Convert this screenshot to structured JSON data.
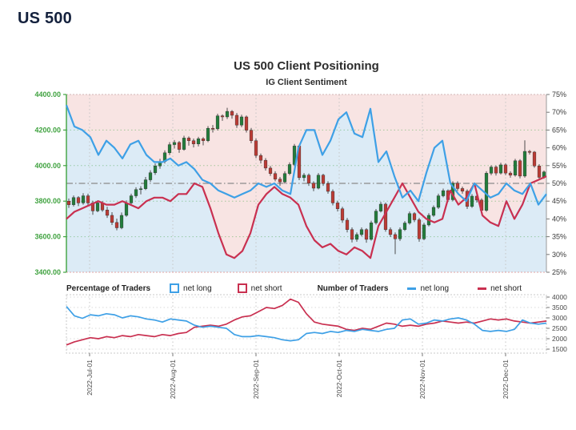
{
  "page": {
    "title": "US 500"
  },
  "chart": {
    "title": "US 500 Client Positioning",
    "subtitle": "IG Client Sentiment",
    "legend": {
      "pct_group_label": "Percentage of Traders",
      "pct_net_long": "net long",
      "pct_net_short": "net short",
      "num_group_label": "Number of Traders",
      "num_net_long": "net long",
      "num_net_short": "net short"
    },
    "colors": {
      "net_long_line": "#3ea0e6",
      "net_short_line": "#c93050",
      "bg_above": "#f8e4e3",
      "bg_below": "#dcebf6",
      "candle_up": "#227d3b",
      "candle_down": "#bc3b34",
      "price_axis": "#3fa23f",
      "pct_axis_text": "#3a3a3a",
      "midline": "#8a8a8a"
    }
  },
  "chart_data": {
    "type": "candlestick+line",
    "title": "US 500 Client Positioning",
    "subtitle": "IG Client Sentiment",
    "price_axis_ticks": [
      "4400.00",
      "4200.00",
      "4000.00",
      "3800.00",
      "3600.00",
      "3400.00"
    ],
    "price_ylim": [
      3400,
      4400
    ],
    "pct_axis_ticks": [
      "75%",
      "70%",
      "65%",
      "60%",
      "55%",
      "50%",
      "45%",
      "40%",
      "35%",
      "30%",
      "25%"
    ],
    "pct_ylim": [
      25,
      75
    ],
    "x_tick_labels": [
      "2022-Jul-01",
      "2022-Aug-01",
      "2022-Sep-01",
      "2022-Oct-01",
      "2022-Nov-01",
      "2022-Dec-01"
    ],
    "midline_pct": 50,
    "candles_ohlc": [
      [
        3800,
        3815,
        3762,
        3780
      ],
      [
        3780,
        3832,
        3770,
        3820
      ],
      [
        3820,
        3828,
        3772,
        3790
      ],
      [
        3790,
        3845,
        3780,
        3830
      ],
      [
        3830,
        3842,
        3776,
        3790
      ],
      [
        3790,
        3802,
        3723,
        3745
      ],
      [
        3745,
        3805,
        3738,
        3790
      ],
      [
        3790,
        3800,
        3740,
        3750
      ],
      [
        3750,
        3768,
        3706,
        3720
      ],
      [
        3720,
        3738,
        3666,
        3680
      ],
      [
        3680,
        3702,
        3636,
        3650
      ],
      [
        3650,
        3736,
        3642,
        3720
      ],
      [
        3720,
        3804,
        3712,
        3790
      ],
      [
        3790,
        3842,
        3778,
        3830
      ],
      [
        3830,
        3878,
        3818,
        3865
      ],
      [
        3865,
        3884,
        3838,
        3870
      ],
      [
        3870,
        3936,
        3862,
        3920
      ],
      [
        3920,
        3974,
        3908,
        3960
      ],
      [
        3960,
        4012,
        3948,
        3998
      ],
      [
        3998,
        4038,
        3982,
        4023
      ],
      [
        4023,
        4086,
        4012,
        4072
      ],
      [
        4072,
        4132,
        4060,
        4118
      ],
      [
        4118,
        4144,
        4096,
        4130
      ],
      [
        4130,
        4138,
        4072,
        4091
      ],
      [
        4091,
        4168,
        4084,
        4155
      ],
      [
        4155,
        4164,
        4112,
        4140
      ],
      [
        4140,
        4152,
        4102,
        4122
      ],
      [
        4122,
        4162,
        4108,
        4151
      ],
      [
        4151,
        4160,
        4114,
        4140
      ],
      [
        4140,
        4222,
        4132,
        4210
      ],
      [
        4210,
        4228,
        4186,
        4207
      ],
      [
        4207,
        4292,
        4198,
        4280
      ],
      [
        4280,
        4288,
        4252,
        4274
      ],
      [
        4274,
        4325,
        4262,
        4305
      ],
      [
        4305,
        4312,
        4264,
        4283
      ],
      [
        4283,
        4296,
        4212,
        4228
      ],
      [
        4228,
        4286,
        4216,
        4274
      ],
      [
        4274,
        4282,
        4186,
        4199
      ],
      [
        4199,
        4212,
        4126,
        4140
      ],
      [
        4140,
        4152,
        4042,
        4057
      ],
      [
        4057,
        4068,
        4012,
        4030
      ],
      [
        4030,
        4042,
        3972,
        3986
      ],
      [
        3986,
        3998,
        3942,
        3955
      ],
      [
        3955,
        3968,
        3912,
        3924
      ],
      [
        3924,
        3936,
        3886,
        3908
      ],
      [
        3908,
        3968,
        3898,
        3955
      ],
      [
        3955,
        4018,
        3946,
        4006
      ],
      [
        4006,
        4122,
        3998,
        4110
      ],
      [
        4110,
        4118,
        3918,
        3932
      ],
      [
        3932,
        3958,
        3912,
        3946
      ],
      [
        3946,
        3956,
        3886,
        3901
      ],
      [
        3901,
        3912,
        3856,
        3873
      ],
      [
        3873,
        3958,
        3866,
        3946
      ],
      [
        3946,
        3954,
        3886,
        3899
      ],
      [
        3899,
        3912,
        3842,
        3855
      ],
      [
        3855,
        3866,
        3776,
        3790
      ],
      [
        3790,
        3802,
        3742,
        3757
      ],
      [
        3757,
        3768,
        3678,
        3693
      ],
      [
        3693,
        3706,
        3624,
        3640
      ],
      [
        3640,
        3652,
        3568,
        3585
      ],
      [
        3585,
        3624,
        3572,
        3612
      ],
      [
        3612,
        3652,
        3602,
        3640
      ],
      [
        3640,
        3648,
        3566,
        3585
      ],
      [
        3585,
        3690,
        3578,
        3678
      ],
      [
        3678,
        3756,
        3668,
        3744
      ],
      [
        3744,
        3796,
        3736,
        3783
      ],
      [
        3783,
        3792,
        3628,
        3640
      ],
      [
        3640,
        3652,
        3598,
        3612
      ],
      [
        3612,
        3624,
        3502,
        3588
      ],
      [
        3588,
        3652,
        3576,
        3640
      ],
      [
        3640,
        3688,
        3632,
        3677
      ],
      [
        3677,
        3742,
        3668,
        3730
      ],
      [
        3730,
        3738,
        3682,
        3695
      ],
      [
        3695,
        3706,
        3572,
        3588
      ],
      [
        3588,
        3678,
        3580,
        3666
      ],
      [
        3666,
        3732,
        3658,
        3720
      ],
      [
        3720,
        3776,
        3712,
        3765
      ],
      [
        3765,
        3842,
        3756,
        3830
      ],
      [
        3830,
        3871,
        3822,
        3859
      ],
      [
        3859,
        3866,
        3796,
        3808
      ],
      [
        3808,
        3912,
        3800,
        3901
      ],
      [
        3901,
        3912,
        3858,
        3871
      ],
      [
        3871,
        3882,
        3842,
        3856
      ],
      [
        3856,
        3866,
        3756,
        3770
      ],
      [
        3770,
        3840,
        3762,
        3828
      ],
      [
        3828,
        3836,
        3792,
        3806
      ],
      [
        3806,
        3816,
        3736,
        3748
      ],
      [
        3748,
        3968,
        3740,
        3957
      ],
      [
        3957,
        4002,
        3946,
        3992
      ],
      [
        3992,
        4001,
        3944,
        3958
      ],
      [
        3958,
        4016,
        3950,
        4004
      ],
      [
        4004,
        4012,
        3946,
        3958
      ],
      [
        3958,
        3968,
        3932,
        3946
      ],
      [
        3946,
        4038,
        3938,
        4027
      ],
      [
        4027,
        4036,
        3928,
        3941
      ],
      [
        3941,
        4142,
        3932,
        4080
      ],
      [
        4080,
        4088,
        4062,
        4076
      ],
      [
        4076,
        4082,
        3988,
        3998
      ],
      [
        3998,
        4008,
        3922,
        3934
      ],
      [
        3934,
        3972,
        3926,
        3964
      ]
    ],
    "net_long_pct": [
      72,
      66,
      65,
      63,
      58,
      62,
      60,
      57,
      61,
      62,
      58,
      56,
      56,
      57,
      55,
      56,
      54,
      51,
      50,
      48,
      47,
      46,
      47,
      48,
      50,
      49,
      50,
      48,
      47,
      60,
      65,
      65,
      58,
      62,
      68,
      70,
      64,
      63,
      71,
      56,
      59,
      52,
      46,
      48,
      45,
      53,
      60,
      62,
      50,
      47,
      45,
      50,
      48,
      46,
      47,
      50,
      48,
      47,
      50,
      44,
      47
    ],
    "net_short_pct": [
      40,
      42,
      43,
      44,
      45,
      44,
      44,
      45,
      44,
      43,
      45,
      46,
      46,
      45,
      47,
      47,
      50,
      49,
      43,
      36,
      30,
      29,
      31,
      36,
      44,
      47,
      49,
      47,
      46,
      44,
      38,
      34,
      32,
      33,
      31,
      30,
      32,
      31,
      29,
      38,
      42,
      46,
      50,
      46,
      42,
      40,
      39,
      40,
      48,
      44,
      46,
      50,
      41,
      39,
      38,
      45,
      40,
      44,
      50,
      51,
      52
    ],
    "shade_boundary_pct": [
      72,
      66,
      65,
      63,
      58,
      62,
      60,
      57,
      61,
      62,
      58,
      56,
      56,
      57,
      55,
      56,
      54,
      49,
      43,
      36,
      30,
      29,
      31,
      36,
      44,
      47,
      50,
      48,
      47,
      60,
      65,
      65,
      58,
      62,
      68,
      70,
      64,
      63,
      71,
      56,
      59,
      52,
      46,
      48,
      45,
      53,
      60,
      62,
      50,
      44,
      46,
      50,
      41,
      39,
      39,
      46,
      41,
      45,
      50,
      45,
      49
    ],
    "sub_chart": {
      "ylabel_ticks": [
        "4000",
        "3500",
        "3000",
        "2500",
        "2000",
        "1500"
      ],
      "ylim": [
        1300,
        4100
      ],
      "net_long_traders": [
        3550,
        3100,
        2980,
        3150,
        3100,
        3200,
        3150,
        3000,
        3100,
        3050,
        2950,
        2900,
        2800,
        2950,
        2900,
        2850,
        2650,
        2550,
        2600,
        2550,
        2500,
        2200,
        2100,
        2100,
        2150,
        2100,
        2050,
        1950,
        1900,
        1950,
        2250,
        2300,
        2250,
        2350,
        2300,
        2400,
        2350,
        2450,
        2400,
        2350,
        2450,
        2500,
        2900,
        2950,
        2700,
        2750,
        2900,
        2850,
        2950,
        3000,
        2900,
        2700,
        2400,
        2350,
        2400,
        2350,
        2450,
        2900,
        2750,
        2700,
        2750
      ],
      "net_short_traders": [
        1700,
        1850,
        1950,
        2050,
        2000,
        2100,
        2050,
        2150,
        2100,
        2200,
        2150,
        2100,
        2200,
        2150,
        2250,
        2300,
        2550,
        2600,
        2650,
        2600,
        2700,
        2900,
        3050,
        3100,
        3300,
        3500,
        3450,
        3600,
        3900,
        3750,
        3200,
        2800,
        2700,
        2650,
        2600,
        2450,
        2400,
        2500,
        2450,
        2600,
        2750,
        2700,
        2600,
        2650,
        2600,
        2700,
        2750,
        2850,
        2800,
        2750,
        2800,
        2750,
        2850,
        2950,
        2900,
        2950,
        2850,
        2800,
        2750,
        2800,
        2850
      ]
    }
  }
}
